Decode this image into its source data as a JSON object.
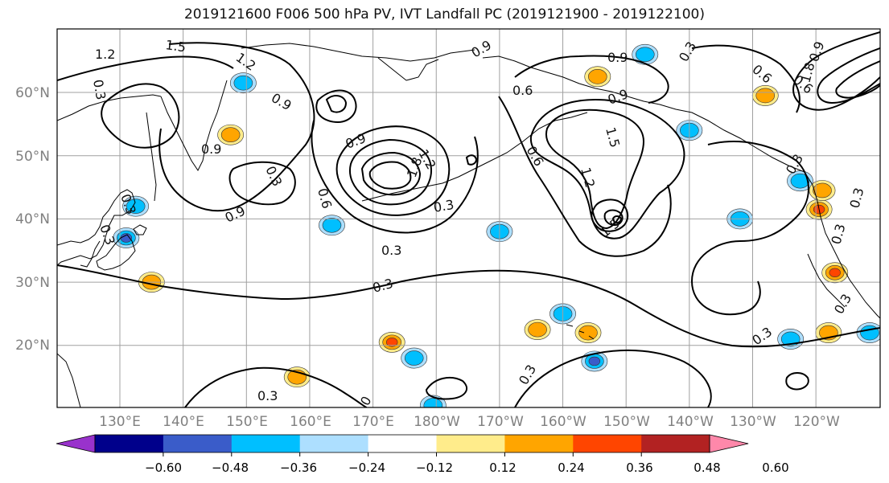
{
  "chart_data": {
    "type": "map-contour",
    "title": "2019121600 F006 500 hPa PV, IVT Landfall PC (2019121900 - 2019122100)",
    "lon_ticks": [
      "130°E",
      "140°E",
      "150°E",
      "160°E",
      "170°E",
      "180°W",
      "170°W",
      "160°W",
      "150°W",
      "140°W",
      "130°W",
      "120°W"
    ],
    "lat_ticks": [
      "60°N",
      "50°N",
      "40°N",
      "30°N",
      "20°N"
    ],
    "grid": true,
    "contour_labels": [
      "1.2",
      "1.5",
      "0.9",
      "1.2",
      "0.9",
      "0.9",
      "0.9",
      "0.6",
      "0.3",
      "0.9",
      "0.6",
      "0.9",
      "0.3",
      "0.3",
      "1.5",
      "0.6",
      "1.2",
      "0.9",
      "1.2",
      "1.8",
      "0.3",
      "0.3",
      "0.3",
      "1.5",
      "0.6",
      "0.3",
      "0.3",
      "0.3",
      "0.3",
      "0.3",
      "0",
      "0.3",
      "0.3",
      "0.9",
      "0.6",
      "1.8",
      "0.3",
      "0.3"
    ],
    "colorbar": {
      "ticks": [
        "−0.60",
        "−0.48",
        "−0.36",
        "−0.24",
        "−0.12",
        "0.12",
        "0.24",
        "0.36",
        "0.48",
        "0.60"
      ],
      "levels": [
        -0.72,
        -0.6,
        -0.48,
        -0.36,
        -0.24,
        -0.12,
        0.12,
        0.24,
        0.36,
        0.48,
        0.6,
        0.72
      ],
      "colors": [
        "#9932CC",
        "#00008B",
        "#3A5CC9",
        "#00BFFF",
        "#ADDFFF",
        "#FFFFFF",
        "#FFEC8B",
        "#FFA500",
        "#FF4500",
        "#B22222",
        "#FF88AA"
      ],
      "extend": "both"
    },
    "anomaly_blobs": [
      {
        "lon": 131,
        "lat": 37,
        "value": -0.45
      },
      {
        "lon": 132.5,
        "lat": 42,
        "value": -0.3
      },
      {
        "lon": 135,
        "lat": 30,
        "value": 0.3
      },
      {
        "lon": 149.5,
        "lat": 61.5,
        "value": -0.3
      },
      {
        "lon": 147.5,
        "lat": 53.3,
        "value": 0.3
      },
      {
        "lon": 163.5,
        "lat": 39,
        "value": -0.3
      },
      {
        "lon": 173,
        "lat": 20.5,
        "value": 0.45
      },
      {
        "lon": 176.5,
        "lat": 18,
        "value": -0.3
      },
      {
        "lon": 179.5,
        "lat": 10.5,
        "value": -0.3
      },
      {
        "lon": 190,
        "lat": 38,
        "value": -0.3
      },
      {
        "lon": 204,
        "lat": 22,
        "value": 0.3
      },
      {
        "lon": 205,
        "lat": 17.5,
        "value": -0.45
      },
      {
        "lon": 205.5,
        "lat": 62.5,
        "value": 0.3
      },
      {
        "lon": 213,
        "lat": 66,
        "value": -0.3
      },
      {
        "lon": 220,
        "lat": 54,
        "value": -0.3
      },
      {
        "lon": 228,
        "lat": 40,
        "value": -0.3
      },
      {
        "lon": 232,
        "lat": 59.5,
        "value": 0.3
      },
      {
        "lon": 236,
        "lat": 21,
        "value": -0.3
      },
      {
        "lon": 237.5,
        "lat": 46,
        "value": -0.3
      },
      {
        "lon": 240.5,
        "lat": 41.5,
        "value": 0.45
      },
      {
        "lon": 241,
        "lat": 44.5,
        "value": 0.3
      },
      {
        "lon": 243,
        "lat": 31.5,
        "value": 0.45
      },
      {
        "lon": 242,
        "lat": 22,
        "value": 0.3
      },
      {
        "lon": 248.5,
        "lat": 22,
        "value": -0.3
      },
      {
        "lon": 158,
        "lat": 15,
        "value": 0.3
      },
      {
        "lon": 196,
        "lat": 22.5,
        "value": 0.3
      },
      {
        "lon": 200,
        "lat": 25,
        "value": -0.3
      }
    ]
  }
}
